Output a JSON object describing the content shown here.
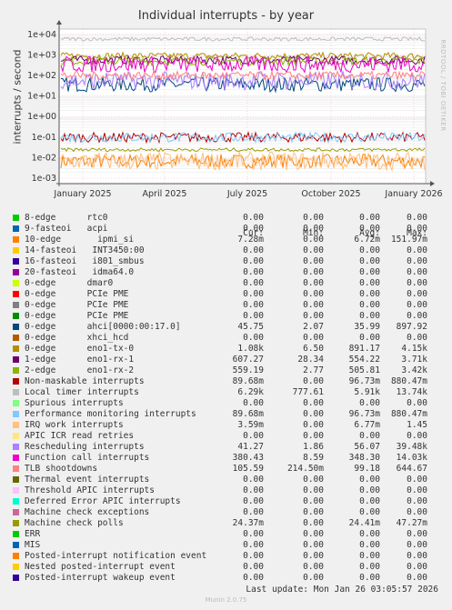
{
  "chart_data": {
    "type": "line",
    "title": "Individual interrupts - by year",
    "ylabel": "interrupts / second",
    "yscale": "log",
    "ylim": [
      0.0005,
      20000
    ],
    "yticks": [
      "1e-03",
      "1e-02",
      "1e-01",
      "1e+00",
      "1e+01",
      "1e+02",
      "1e+03",
      "1e+04"
    ],
    "xticks": [
      "January 2025",
      "April 2025",
      "July 2025",
      "October 2025",
      "January 2026"
    ],
    "grid": true,
    "legend_columns": [
      "Cur:",
      "Min:",
      "Avg:",
      "Max:"
    ],
    "series": [
      {
        "name": "8-edge      rtc0",
        "color": "#00cc00",
        "cur": "0.00",
        "min": "0.00",
        "avg": "0.00",
        "max": "0.00"
      },
      {
        "name": "9-fasteoi   acpi",
        "color": "#0066b3",
        "cur": "0.00",
        "min": "0.00",
        "avg": "0.00",
        "max": "0.00"
      },
      {
        "name": "10-edge       ipmi_si",
        "color": "#ff8000",
        "cur": "7.28m",
        "min": "0.00",
        "avg": "6.72m",
        "max": "151.97m"
      },
      {
        "name": "14-fasteoi   INT3450:00",
        "color": "#ffcc00",
        "cur": "0.00",
        "min": "0.00",
        "avg": "0.00",
        "max": "0.00"
      },
      {
        "name": "16-fasteoi   i801_smbus",
        "color": "#330099",
        "cur": "0.00",
        "min": "0.00",
        "avg": "0.00",
        "max": "0.00"
      },
      {
        "name": "20-fasteoi   idma64.0",
        "color": "#990099",
        "cur": "0.00",
        "min": "0.00",
        "avg": "0.00",
        "max": "0.00"
      },
      {
        "name": "0-edge      dmar0",
        "color": "#ccff00",
        "cur": "0.00",
        "min": "0.00",
        "avg": "0.00",
        "max": "0.00"
      },
      {
        "name": "0-edge      PCIe PME",
        "color": "#ff0000",
        "cur": "0.00",
        "min": "0.00",
        "avg": "0.00",
        "max": "0.00"
      },
      {
        "name": "0-edge      PCIe PME",
        "color": "#808080",
        "cur": "0.00",
        "min": "0.00",
        "avg": "0.00",
        "max": "0.00"
      },
      {
        "name": "0-edge      PCIe PME",
        "color": "#008f00",
        "cur": "0.00",
        "min": "0.00",
        "avg": "0.00",
        "max": "0.00"
      },
      {
        "name": "0-edge      ahci[0000:00:17.0]",
        "color": "#00487d",
        "cur": "45.75",
        "min": "2.07",
        "avg": "35.99",
        "max": "897.92"
      },
      {
        "name": "0-edge      xhci_hcd",
        "color": "#b35a00",
        "cur": "0.00",
        "min": "0.00",
        "avg": "0.00",
        "max": "0.00"
      },
      {
        "name": "0-edge      eno1-tx-0",
        "color": "#b38f00",
        "cur": "1.08k",
        "min": "6.50",
        "avg": "891.17",
        "max": "4.15k"
      },
      {
        "name": "1-edge      eno1-rx-1",
        "color": "#6b006b",
        "cur": "607.27",
        "min": "28.34",
        "avg": "554.22",
        "max": "3.71k"
      },
      {
        "name": "2-edge      eno1-rx-2",
        "color": "#8fb300",
        "cur": "559.19",
        "min": "2.77",
        "avg": "505.81",
        "max": "3.42k"
      },
      {
        "name": "Non-maskable interrupts",
        "color": "#b30000",
        "cur": "89.68m",
        "min": "0.00",
        "avg": "96.73m",
        "max": "880.47m"
      },
      {
        "name": "Local timer interrupts",
        "color": "#bebebe",
        "cur": "6.29k",
        "min": "777.61",
        "avg": "5.91k",
        "max": "13.74k"
      },
      {
        "name": "Spurious interrupts",
        "color": "#80ff80",
        "cur": "0.00",
        "min": "0.00",
        "avg": "0.00",
        "max": "0.00"
      },
      {
        "name": "Performance monitoring interrupts",
        "color": "#80c9ff",
        "cur": "89.68m",
        "min": "0.00",
        "avg": "96.73m",
        "max": "880.47m"
      },
      {
        "name": "IRQ work interrupts",
        "color": "#ffc080",
        "cur": "3.59m",
        "min": "0.00",
        "avg": "6.77m",
        "max": "1.45"
      },
      {
        "name": "APIC ICR read retries",
        "color": "#ffe680",
        "cur": "0.00",
        "min": "0.00",
        "avg": "0.00",
        "max": "0.00"
      },
      {
        "name": "Rescheduling interrupts",
        "color": "#aa80ff",
        "cur": "41.27",
        "min": "1.86",
        "avg": "56.07",
        "max": "39.48k"
      },
      {
        "name": "Function call interrupts",
        "color": "#ee00cc",
        "cur": "380.43",
        "min": "8.59",
        "avg": "348.30",
        "max": "14.03k"
      },
      {
        "name": "TLB shootdowns",
        "color": "#ff8080",
        "cur": "105.59",
        "min": "214.50m",
        "avg": "99.18",
        "max": "644.67"
      },
      {
        "name": "Thermal event interrupts",
        "color": "#666600",
        "cur": "0.00",
        "min": "0.00",
        "avg": "0.00",
        "max": "0.00"
      },
      {
        "name": "Threshold APIC interrupts",
        "color": "#ffbfff",
        "cur": "0.00",
        "min": "0.00",
        "avg": "0.00",
        "max": "0.00"
      },
      {
        "name": "Deferred Error APIC interrupts",
        "color": "#00ffcc",
        "cur": "0.00",
        "min": "0.00",
        "avg": "0.00",
        "max": "0.00"
      },
      {
        "name": "Machine check exceptions",
        "color": "#cc6699",
        "cur": "0.00",
        "min": "0.00",
        "avg": "0.00",
        "max": "0.00"
      },
      {
        "name": "Machine check polls",
        "color": "#999900",
        "cur": "24.37m",
        "min": "0.00",
        "avg": "24.41m",
        "max": "47.27m"
      },
      {
        "name": "ERR",
        "color": "#00cc00",
        "cur": "0.00",
        "min": "0.00",
        "avg": "0.00",
        "max": "0.00"
      },
      {
        "name": "MIS",
        "color": "#0066b3",
        "cur": "0.00",
        "min": "0.00",
        "avg": "0.00",
        "max": "0.00"
      },
      {
        "name": "Posted-interrupt notification event",
        "color": "#ff8000",
        "cur": "0.00",
        "min": "0.00",
        "avg": "0.00",
        "max": "0.00"
      },
      {
        "name": "Nested posted-interrupt event",
        "color": "#ffcc00",
        "cur": "0.00",
        "min": "0.00",
        "avg": "0.00",
        "max": "0.00"
      },
      {
        "name": "Posted-interrupt wakeup event",
        "color": "#330099",
        "cur": "0.00",
        "min": "0.00",
        "avg": "0.00",
        "max": "0.00"
      }
    ]
  },
  "side_text": "RRDTOOL / TOBI OETIKER",
  "last_update": "Last update: Mon Jan 26 03:05:57 2026",
  "munin_version": "Munin 2.0.75"
}
